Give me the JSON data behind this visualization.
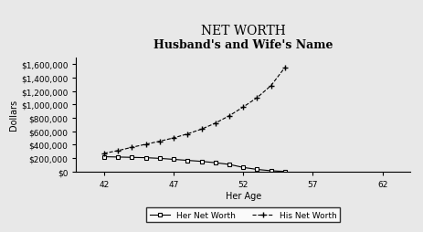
{
  "title": "NET WORTH",
  "subtitle": "Husband's and Wife's Name",
  "xlabel": "Her Age",
  "ylabel": "Dollars",
  "xlim": [
    40,
    64
  ],
  "ylim": [
    0,
    1700000
  ],
  "xticks": [
    42,
    47,
    52,
    57,
    62
  ],
  "yticks": [
    0,
    200000,
    400000,
    600000,
    800000,
    1000000,
    1200000,
    1400000,
    1600000
  ],
  "ytick_labels": [
    "$0",
    "$200,000",
    "$400,000",
    "$600,000",
    "$800,000",
    "$1,000,000",
    "$1,200,000",
    "$1,400,000",
    "$1,600,000"
  ],
  "age": [
    42,
    43,
    44,
    45,
    46,
    47,
    48,
    49,
    50,
    51,
    52,
    53,
    54,
    55
  ],
  "her_net_worth": [
    220000,
    215000,
    210000,
    205000,
    195000,
    180000,
    165000,
    150000,
    130000,
    105000,
    60000,
    30000,
    10000,
    0
  ],
  "his_net_worth": [
    270000,
    310000,
    360000,
    405000,
    450000,
    500000,
    560000,
    630000,
    720000,
    830000,
    960000,
    1100000,
    1280000,
    1550000
  ],
  "line_color": "#000000",
  "her_marker": "s",
  "his_marker": "+",
  "her_label": "Her Net Worth",
  "his_label": "His Net Worth",
  "her_linestyle": "-",
  "his_linestyle": "--",
  "bg_color": "#e8e8e8",
  "title_fontsize": 10,
  "subtitle_fontsize": 9,
  "axis_label_fontsize": 7,
  "tick_fontsize": 6.5,
  "legend_fontsize": 6.5
}
